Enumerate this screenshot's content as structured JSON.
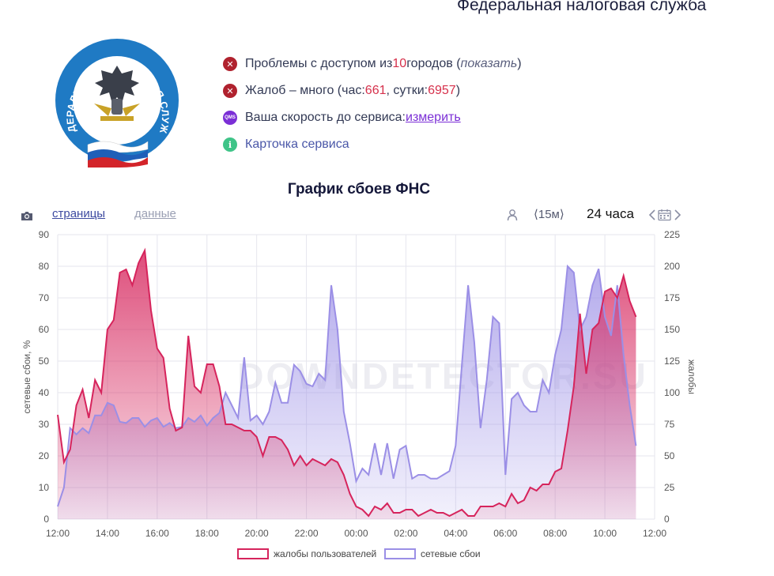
{
  "page_title": "Федеральная налоговая служба",
  "logo": {
    "ring_text": "ФЕДЕРАЛЬНАЯ НАЛОГОВАЯ СЛУЖБА",
    "colors": {
      "ring": "#1f7ac4",
      "flag_white": "#ffffff",
      "flag_blue": "#1f5fb8",
      "flag_red": "#d3242a"
    }
  },
  "status": {
    "access": {
      "icon": "error-icon",
      "prefix": "Проблемы с доступом из ",
      "count": "10",
      "suffix": " городов (",
      "link": "показать",
      "close": ")"
    },
    "complaints": {
      "icon": "error-icon",
      "prefix": "Жалоб – много (час: ",
      "hour": "661",
      "mid": ", сутки: ",
      "day": "6957",
      "close": ")"
    },
    "speed": {
      "icon": "qms-icon",
      "icon_text": "QMS",
      "prefix": "Ваша скорость до сервиса: ",
      "link": "измерить"
    },
    "card": {
      "icon": "info-icon",
      "icon_text": "i",
      "label": "Карточка сервиса"
    }
  },
  "toolbar": {
    "pages_tab": "страницы",
    "data_tab": "данные",
    "interval": "⟨15м⟩",
    "range": "24 часа",
    "icons": [
      "camera-icon",
      "user-icon",
      "chevron-left-icon",
      "calendar-icon",
      "chevron-right-icon"
    ]
  },
  "chart_data": {
    "type": "area",
    "title": "График сбоев ФНС",
    "watermark": "DOWNDETECTOR.SU",
    "ylabel_left": "сетевые сбои, %",
    "ylabel_right": "жалобы",
    "ylim_left": [
      0,
      90
    ],
    "ylim_right": [
      0,
      225
    ],
    "yticks_left": [
      "0",
      "10",
      "20",
      "30",
      "40",
      "50",
      "60",
      "70",
      "80",
      "90"
    ],
    "yticks_right": [
      "0",
      "25",
      "50",
      "75",
      "100",
      "125",
      "150",
      "175",
      "200",
      "225"
    ],
    "x_range_hours": [
      12,
      36
    ],
    "xticks": [
      "12:00",
      "14:00",
      "16:00",
      "18:00",
      "20:00",
      "22:00",
      "00:00",
      "02:00",
      "04:00",
      "06:00",
      "08:00",
      "10:00",
      "12:00"
    ],
    "grid": true,
    "legend_position": "bottom-center",
    "series": [
      {
        "name": "жалобы пользователей",
        "axis": "left",
        "color": "#d6245c",
        "points": [
          [
            12,
            33
          ],
          [
            12.25,
            18
          ],
          [
            12.5,
            22
          ],
          [
            12.75,
            36
          ],
          [
            13,
            41
          ],
          [
            13.25,
            32
          ],
          [
            13.5,
            44
          ],
          [
            13.75,
            40
          ],
          [
            14,
            60
          ],
          [
            14.25,
            63
          ],
          [
            14.5,
            78
          ],
          [
            14.75,
            79
          ],
          [
            15,
            74
          ],
          [
            15.25,
            81
          ],
          [
            15.5,
            85
          ],
          [
            15.75,
            66
          ],
          [
            16,
            54
          ],
          [
            16.25,
            51
          ],
          [
            16.5,
            35
          ],
          [
            16.75,
            28
          ],
          [
            17,
            29
          ],
          [
            17.25,
            58
          ],
          [
            17.5,
            42
          ],
          [
            17.75,
            40
          ],
          [
            18,
            49
          ],
          [
            18.25,
            49
          ],
          [
            18.5,
            42
          ],
          [
            18.75,
            30
          ],
          [
            19,
            30
          ],
          [
            19.25,
            29
          ],
          [
            19.5,
            28
          ],
          [
            19.75,
            28
          ],
          [
            20,
            26
          ],
          [
            20.25,
            20
          ],
          [
            20.5,
            26
          ],
          [
            20.75,
            26
          ],
          [
            21,
            25
          ],
          [
            21.25,
            22
          ],
          [
            21.5,
            17
          ],
          [
            21.75,
            20
          ],
          [
            22,
            17
          ],
          [
            22.25,
            19
          ],
          [
            22.5,
            18
          ],
          [
            22.75,
            17
          ],
          [
            23,
            19
          ],
          [
            23.25,
            18
          ],
          [
            23.5,
            14
          ],
          [
            23.75,
            8
          ],
          [
            24,
            4
          ],
          [
            24.25,
            3
          ],
          [
            24.5,
            1
          ],
          [
            24.75,
            4
          ],
          [
            25,
            3
          ],
          [
            25.25,
            5
          ],
          [
            25.5,
            2
          ],
          [
            25.75,
            2
          ],
          [
            26,
            3
          ],
          [
            26.25,
            3
          ],
          [
            26.5,
            1
          ],
          [
            26.75,
            2
          ],
          [
            27,
            3
          ],
          [
            27.25,
            2
          ],
          [
            27.5,
            2
          ],
          [
            27.75,
            1
          ],
          [
            28,
            2
          ],
          [
            28.25,
            3
          ],
          [
            28.5,
            1
          ],
          [
            28.75,
            1
          ],
          [
            29,
            4
          ],
          [
            29.25,
            4
          ],
          [
            29.5,
            4
          ],
          [
            29.75,
            5
          ],
          [
            30,
            4
          ],
          [
            30.25,
            8
          ],
          [
            30.5,
            5
          ],
          [
            30.75,
            6
          ],
          [
            31,
            10
          ],
          [
            31.25,
            9
          ],
          [
            31.5,
            11
          ],
          [
            31.75,
            11
          ],
          [
            32,
            15
          ],
          [
            32.25,
            16
          ],
          [
            32.5,
            28
          ],
          [
            32.75,
            42
          ],
          [
            33,
            65
          ],
          [
            33.25,
            46
          ],
          [
            33.5,
            60
          ],
          [
            33.75,
            62
          ],
          [
            34,
            72
          ],
          [
            34.25,
            73
          ],
          [
            34.5,
            70
          ],
          [
            34.75,
            77
          ],
          [
            35,
            69
          ],
          [
            35.25,
            64
          ]
        ]
      },
      {
        "name": "сетевые сбои",
        "axis": "right",
        "color": "#9b8fe6",
        "points": [
          [
            12,
            10
          ],
          [
            12.25,
            25
          ],
          [
            12.5,
            72
          ],
          [
            12.75,
            67
          ],
          [
            13,
            72
          ],
          [
            13.25,
            68
          ],
          [
            13.5,
            82
          ],
          [
            13.75,
            82
          ],
          [
            14,
            92
          ],
          [
            14.25,
            90
          ],
          [
            14.5,
            77
          ],
          [
            14.75,
            76
          ],
          [
            15,
            80
          ],
          [
            15.25,
            80
          ],
          [
            15.5,
            73
          ],
          [
            15.75,
            78
          ],
          [
            16,
            80
          ],
          [
            16.25,
            73
          ],
          [
            16.5,
            76
          ],
          [
            16.75,
            72
          ],
          [
            17,
            73
          ],
          [
            17.25,
            80
          ],
          [
            17.5,
            77
          ],
          [
            17.75,
            82
          ],
          [
            18,
            74
          ],
          [
            18.25,
            80
          ],
          [
            18.5,
            84
          ],
          [
            18.75,
            100
          ],
          [
            19,
            90
          ],
          [
            19.25,
            80
          ],
          [
            19.5,
            128
          ],
          [
            19.75,
            78
          ],
          [
            20,
            82
          ],
          [
            20.25,
            75
          ],
          [
            20.5,
            85
          ],
          [
            20.75,
            108
          ],
          [
            21,
            92
          ],
          [
            21.25,
            92
          ],
          [
            21.5,
            122
          ],
          [
            21.75,
            117
          ],
          [
            22,
            107
          ],
          [
            22.25,
            105
          ],
          [
            22.5,
            115
          ],
          [
            22.75,
            110
          ],
          [
            23,
            185
          ],
          [
            23.25,
            150
          ],
          [
            23.5,
            85
          ],
          [
            23.75,
            60
          ],
          [
            24,
            30
          ],
          [
            24.25,
            40
          ],
          [
            24.5,
            35
          ],
          [
            24.75,
            60
          ],
          [
            25,
            35
          ],
          [
            25.25,
            60
          ],
          [
            25.5,
            32
          ],
          [
            25.75,
            55
          ],
          [
            26,
            58
          ],
          [
            26.25,
            32
          ],
          [
            26.5,
            35
          ],
          [
            26.75,
            35
          ],
          [
            27,
            32
          ],
          [
            27.25,
            32
          ],
          [
            27.5,
            35
          ],
          [
            27.75,
            38
          ],
          [
            28,
            58
          ],
          [
            28.25,
            122
          ],
          [
            28.5,
            185
          ],
          [
            28.75,
            140
          ],
          [
            29,
            72
          ],
          [
            29.25,
            110
          ],
          [
            29.5,
            160
          ],
          [
            29.75,
            155
          ],
          [
            30,
            35
          ],
          [
            30.25,
            95
          ],
          [
            30.5,
            100
          ],
          [
            30.75,
            90
          ],
          [
            31,
            85
          ],
          [
            31.25,
            85
          ],
          [
            31.5,
            110
          ],
          [
            31.75,
            100
          ],
          [
            32,
            130
          ],
          [
            32.25,
            150
          ],
          [
            32.5,
            200
          ],
          [
            32.75,
            195
          ],
          [
            33,
            150
          ],
          [
            33.25,
            160
          ],
          [
            33.5,
            185
          ],
          [
            33.75,
            198
          ],
          [
            34,
            160
          ],
          [
            34.25,
            145
          ],
          [
            34.5,
            185
          ],
          [
            34.75,
            130
          ],
          [
            35,
            90
          ],
          [
            35.25,
            58
          ]
        ]
      }
    ]
  }
}
